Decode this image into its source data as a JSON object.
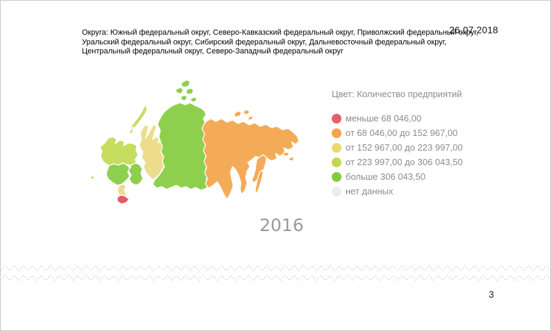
{
  "page": {
    "date": "26.07.2018",
    "page_number": "3"
  },
  "header": {
    "districts_text": "Округа: Южный федеральный округ, Северо-Кавказский федеральный округ, Приволжский федеральный округ, Уральский федеральный округ, Сибирский федеральный округ, Дальневосточный федеральный округ, Центральный федеральный округ, Северо-Западный федеральный округ"
  },
  "legend": {
    "title": "Цвет: Количество предприятий",
    "items": [
      {
        "label": "меньше 68 046,00",
        "color": "#e5606e"
      },
      {
        "label": "от 68 046,00 до 152 967,00",
        "color": "#f2a44e"
      },
      {
        "label": "от 152 967,00 до 223 997,00",
        "color": "#ebd96e"
      },
      {
        "label": "от 223 997,00 до 306 043,50",
        "color": "#c3d84e"
      },
      {
        "label": "больше 306 043,50",
        "color": "#83cb3e"
      },
      {
        "label": "нет данных",
        "color": "#ececec"
      }
    ]
  },
  "map": {
    "year_label": "2016",
    "regions": [
      {
        "id": "northwest",
        "name": "Северо-Западный федеральный округ",
        "class": "от 223 997,00 до 306 043,50",
        "color": "#c7dd5f"
      },
      {
        "id": "central",
        "name": "Центральный федеральный округ",
        "class": "больше 306 043,50",
        "color": "#8ed04d"
      },
      {
        "id": "volga",
        "name": "Приволжский федеральный округ",
        "class": "больше 306 043,50",
        "color": "#8ed04d"
      },
      {
        "id": "southern",
        "name": "Южный федеральный округ",
        "class": "от 152 967,00 до 223 997,00",
        "color": "#ecdc8c"
      },
      {
        "id": "caucasus",
        "name": "Северо-Кавказский федеральный округ",
        "class": "меньше 68 046,00",
        "color": "#e7586b"
      },
      {
        "id": "urals",
        "name": "Уральский федеральный округ",
        "class": "от 152 967,00 до 223 997,00",
        "color": "#ecdc8c"
      },
      {
        "id": "siberia",
        "name": "Сибирский федеральный округ",
        "class": "больше 306 043,50",
        "color": "#8ed04d"
      },
      {
        "id": "fareast",
        "name": "Дальневосточный федеральный округ",
        "class": "от 68 046,00 до 152 967,00",
        "color": "#f4ab58"
      }
    ]
  },
  "chart_data": {
    "type": "choropleth",
    "title": "Цвет: Количество предприятий",
    "year": "2016",
    "legend_position": "right",
    "classes": [
      {
        "label": "меньше 68 046,00",
        "color": "#e5606e"
      },
      {
        "label": "от 68 046,00 до 152 967,00",
        "color": "#f2a44e"
      },
      {
        "label": "от 152 967,00 до 223 997,00",
        "color": "#ebd96e"
      },
      {
        "label": "от 223 997,00 до 306 043,50",
        "color": "#c3d84e"
      },
      {
        "label": "больше 306 043,50",
        "color": "#83cb3e"
      },
      {
        "label": "нет данных",
        "color": "#ececec"
      }
    ],
    "regions": [
      {
        "name": "Центральный федеральный округ",
        "class": "больше 306 043,50"
      },
      {
        "name": "Северо-Западный федеральный округ",
        "class": "от 223 997,00 до 306 043,50"
      },
      {
        "name": "Южный федеральный округ",
        "class": "от 152 967,00 до 223 997,00"
      },
      {
        "name": "Северо-Кавказский федеральный округ",
        "class": "меньше 68 046,00"
      },
      {
        "name": "Приволжский федеральный округ",
        "class": "больше 306 043,50"
      },
      {
        "name": "Уральский федеральный округ",
        "class": "от 152 967,00 до 223 997,00"
      },
      {
        "name": "Сибирский федеральный округ",
        "class": "больше 306 043,50"
      },
      {
        "name": "Дальневосточный федеральный округ",
        "class": "от 68 046,00 до 152 967,00"
      }
    ]
  }
}
